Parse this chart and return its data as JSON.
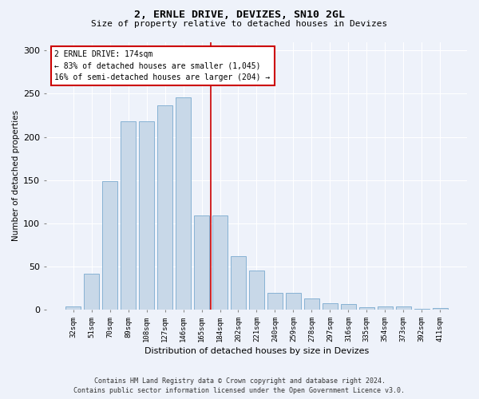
{
  "title": "2, ERNLE DRIVE, DEVIZES, SN10 2GL",
  "subtitle": "Size of property relative to detached houses in Devizes",
  "xlabel": "Distribution of detached houses by size in Devizes",
  "ylabel": "Number of detached properties",
  "footer_line1": "Contains HM Land Registry data © Crown copyright and database right 2024.",
  "footer_line2": "Contains public sector information licensed under the Open Government Licence v3.0.",
  "bar_labels": [
    "32sqm",
    "51sqm",
    "70sqm",
    "89sqm",
    "108sqm",
    "127sqm",
    "146sqm",
    "165sqm",
    "184sqm",
    "202sqm",
    "221sqm",
    "240sqm",
    "259sqm",
    "278sqm",
    "297sqm",
    "316sqm",
    "335sqm",
    "354sqm",
    "373sqm",
    "392sqm",
    "411sqm"
  ],
  "bar_values": [
    4,
    42,
    149,
    218,
    218,
    237,
    246,
    109,
    109,
    62,
    45,
    20,
    20,
    13,
    8,
    7,
    3,
    4,
    4,
    1,
    2
  ],
  "bar_color": "#c8d8e8",
  "bar_edge_color": "#7aaacf",
  "property_size_label": "2 ERNLE DRIVE: 174sqm",
  "annotation_line1": "← 83% of detached houses are smaller (1,045)",
  "annotation_line2": "16% of semi-detached houses are larger (204) →",
  "vline_color": "#cc0000",
  "background_color": "#eef2fa",
  "plot_background_color": "#eef2fa",
  "ylim": [
    0,
    310
  ],
  "yticks": [
    0,
    50,
    100,
    150,
    200,
    250,
    300
  ],
  "vline_pos": 7.5
}
